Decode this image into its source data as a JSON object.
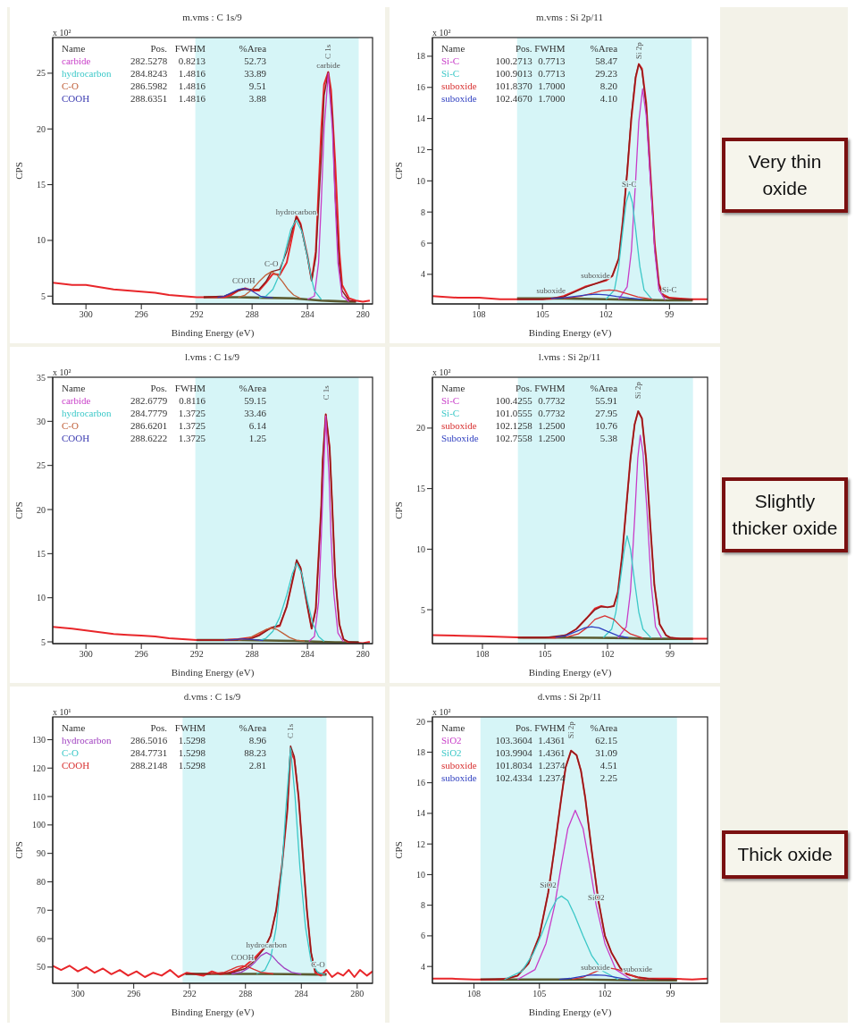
{
  "chart_data": [
    {
      "type": "line",
      "title": "m.vms : C 1s/9",
      "xlabel": "Binding Energy (eV)",
      "ylabel": "CPS",
      "xlim": [
        302.4,
        279.3
      ],
      "xticks": [
        300,
        296,
        292,
        288,
        284,
        280
      ],
      "ylim": [
        4.3,
        28.2
      ],
      "yticks": [
        5,
        10,
        15,
        20,
        25
      ],
      "bands": [
        {
          "axis": "x",
          "from": 292.1,
          "to": 280.3,
          "color": "#d6f5f7"
        }
      ],
      "legend": "top left",
      "legend_title": "Name",
      "annotations": [
        "x 10²",
        "Pos.  FWHM  %Area",
        "282.5278  0.8213  52.73",
        "284.8243  1.4816  33.89",
        "286.5982  1.4816  9.51",
        "288.6351  1.4816  3.88",
        {
          "text": "carbide",
          "x": 282.5,
          "y": 25.0
        },
        {
          "text": "hydrocarbon",
          "x": 284.82,
          "y": 11.8
        },
        {
          "text": "C-O",
          "x": 286.6,
          "y": 7.2
        },
        {
          "text": "COOH",
          "x": 288.6,
          "y": 5.7
        },
        {
          "text": "C 1s",
          "x": 282.5,
          "y": 25.1
        }
      ],
      "series": [
        {
          "name": "carbide",
          "color": "#c83cc8",
          "x": [
            284,
            283.5,
            283.2,
            283,
            282.8,
            282.5,
            282.2,
            282,
            281.8,
            281.5,
            281
          ],
          "values": [
            4.7,
            5.0,
            8.0,
            13.5,
            20.0,
            25.0,
            20.0,
            13.5,
            8.0,
            5.0,
            4.5
          ]
        },
        {
          "name": "hydrocarbon",
          "color": "#3cc8c8",
          "x": [
            287.5,
            287,
            286.5,
            286,
            285.5,
            285.2,
            284.82,
            284.4,
            284,
            283.7,
            283.5,
            283
          ],
          "values": [
            4.85,
            5.0,
            5.6,
            7.0,
            9.5,
            11.0,
            11.8,
            10.8,
            8.5,
            6.5,
            5.5,
            4.7
          ]
        },
        {
          "name": "C-O",
          "color": "#c0603a",
          "x": [
            289,
            288.5,
            288,
            287.5,
            287,
            286.6,
            286.2,
            285.8,
            285.4,
            285,
            284.5
          ],
          "values": [
            4.9,
            5.1,
            5.6,
            6.3,
            6.9,
            7.2,
            6.9,
            6.3,
            5.6,
            5.1,
            4.8
          ]
        },
        {
          "name": "COOH",
          "color": "#3a3ab0",
          "x": [
            290.5,
            290,
            289.5,
            289,
            288.6,
            288.2,
            287.8,
            287.4,
            287,
            286.5
          ],
          "values": [
            4.9,
            5.0,
            5.3,
            5.6,
            5.7,
            5.6,
            5.3,
            5.0,
            4.9,
            4.85
          ]
        },
        {
          "color": "#5a5a30",
          "x": [
            291.5,
            289,
            287,
            285,
            284,
            283,
            282,
            281,
            280.5
          ],
          "values": [
            4.9,
            4.9,
            4.85,
            4.8,
            4.7,
            4.6,
            4.55,
            4.5,
            4.5
          ]
        },
        {
          "color": "#e8262a",
          "x": [
            302.4,
            301,
            300,
            299,
            298,
            297,
            296,
            295,
            294,
            293,
            292,
            291,
            290,
            289.5,
            289,
            288.5,
            288,
            287.5,
            287,
            286.5,
            286,
            285.5,
            285,
            284.8,
            284.5,
            284,
            283.7,
            283.4,
            283,
            282.8,
            282.5,
            282.3,
            282,
            281.7,
            281.5,
            281,
            280.5,
            280,
            279.5
          ],
          "values": [
            6.2,
            6.0,
            6.0,
            5.8,
            5.6,
            5.5,
            5.4,
            5.3,
            5.1,
            5.0,
            4.9,
            4.9,
            4.9,
            5.1,
            5.5,
            5.7,
            5.5,
            5.5,
            6.2,
            7.0,
            6.9,
            8.0,
            11.0,
            12.2,
            11.5,
            8.6,
            6.4,
            9.0,
            20.0,
            24.0,
            25.1,
            23.5,
            17.0,
            9.0,
            6.0,
            4.8,
            4.6,
            4.5,
            4.6
          ]
        },
        {
          "color": "#8b1c1c",
          "x": [
            291.5,
            290,
            289,
            288.6,
            288,
            287.5,
            287,
            286.6,
            286,
            285.5,
            285,
            284.8,
            284.5,
            284,
            283.7,
            283.4,
            283,
            282.8,
            282.5,
            282.2,
            282,
            281.7,
            281.5,
            281,
            280.5
          ],
          "values": [
            4.9,
            5.0,
            5.5,
            5.6,
            5.6,
            5.6,
            6.3,
            7.2,
            7.4,
            9.0,
            11.4,
            12.1,
            11.4,
            8.5,
            6.4,
            8.5,
            17.5,
            23.0,
            25.1,
            21.0,
            14.0,
            7.8,
            5.5,
            4.6,
            4.5
          ]
        }
      ]
    },
    {
      "type": "line",
      "title": "m.vms : Si 2p/11",
      "xlabel": "Binding Energy (eV)",
      "ylabel": "CPS",
      "xlim": [
        110.2,
        97.2
      ],
      "xticks": [
        108,
        105,
        102,
        99
      ],
      "ylim": [
        2.1,
        19.2
      ],
      "yticks": [
        4,
        6,
        8,
        10,
        12,
        14,
        16,
        18
      ],
      "bands": [
        {
          "axis": "x",
          "from": 106.2,
          "to": 97.95,
          "color": "#d6f5f7"
        }
      ],
      "legend": "top left",
      "legend_title": "Name",
      "annotations": [
        "x 10²",
        "Pos.  FWHM  %Area",
        "100.2713  0.7713  58.47",
        "100.9013  0.7713  29.23",
        "101.8370  1.7000  8.20",
        "102.4670  1.7000  4.10",
        {
          "text": "suboxide",
          "x": 102.5,
          "y": 3.4
        },
        {
          "text": "suboxide",
          "x": 104.6,
          "y": 2.45
        },
        {
          "text": "Si-C",
          "x": 100.9,
          "y": 9.3
        },
        {
          "text": "Si-C",
          "x": 99.0,
          "y": 2.5
        },
        {
          "text": "Si 2p",
          "x": 100.45,
          "y": 17.5
        }
      ],
      "series": [
        {
          "name": "Si-C",
          "color": "#c83cc8",
          "x": [
            101.4,
            101.0,
            100.8,
            100.6,
            100.45,
            100.27,
            100.1,
            99.9,
            99.7,
            99.5,
            99.2
          ],
          "values": [
            2.4,
            3.2,
            5.5,
            10.0,
            13.8,
            15.9,
            14.2,
            10.0,
            5.5,
            3.0,
            2.35
          ]
        },
        {
          "name": "Si-C",
          "color": "#3cc8c8",
          "x": [
            102,
            101.6,
            101.4,
            101.2,
            101.05,
            100.9,
            100.75,
            100.6,
            100.4,
            100.2,
            99.8
          ],
          "values": [
            2.4,
            3.0,
            4.5,
            6.9,
            8.6,
            9.3,
            8.6,
            6.9,
            4.5,
            3.0,
            2.35
          ]
        },
        {
          "name": "suboxide",
          "color": "#d83030",
          "x": [
            104,
            103.2,
            102.6,
            102.2,
            101.84,
            101.5,
            101.1,
            100.5,
            99.8
          ],
          "values": [
            2.45,
            2.6,
            2.8,
            2.95,
            3.0,
            2.95,
            2.8,
            2.55,
            2.4
          ]
        },
        {
          "name": "suboxide",
          "color": "#2f3fc0",
          "x": [
            104.6,
            104,
            103.4,
            102.9,
            102.47,
            102.0,
            101.5,
            100.9,
            100.3
          ],
          "values": [
            2.45,
            2.5,
            2.6,
            2.68,
            2.72,
            2.68,
            2.58,
            2.48,
            2.4
          ]
        },
        {
          "color": "#5a5a30",
          "x": [
            106.2,
            104,
            102,
            101,
            100,
            99,
            97.9
          ],
          "values": [
            2.45,
            2.45,
            2.4,
            2.38,
            2.35,
            2.33,
            2.33
          ]
        },
        {
          "color": "#e8262a",
          "x": [
            110.2,
            109,
            108,
            107,
            106,
            105,
            104.5,
            104,
            103.5,
            103,
            102.5,
            102,
            101.7,
            101.4,
            101.2,
            101,
            100.8,
            100.6,
            100.45,
            100.3,
            100.1,
            99.9,
            99.7,
            99.5,
            99.3,
            99,
            98.5,
            98,
            97.2
          ],
          "values": [
            2.6,
            2.5,
            2.5,
            2.4,
            2.4,
            2.4,
            2.45,
            2.6,
            2.9,
            3.2,
            3.4,
            3.6,
            3.9,
            5.0,
            7.5,
            10.5,
            14.0,
            16.6,
            17.5,
            17.2,
            15.0,
            10.5,
            6.0,
            3.4,
            2.7,
            2.5,
            2.45,
            2.4,
            2.4
          ]
        },
        {
          "color": "#8b1c1c",
          "x": [
            106.2,
            105,
            104,
            103.5,
            103,
            102.5,
            102,
            101.7,
            101.4,
            101.2,
            101,
            100.8,
            100.6,
            100.45,
            100.3,
            100.1,
            99.9,
            99.7,
            99.5,
            99.3,
            99,
            98.5,
            97.9
          ],
          "values": [
            2.4,
            2.4,
            2.55,
            2.85,
            3.15,
            3.4,
            3.65,
            3.9,
            5.0,
            7.4,
            10.6,
            14.2,
            16.7,
            17.5,
            17.1,
            14.8,
            10.3,
            5.8,
            3.3,
            2.6,
            2.45,
            2.4,
            2.4
          ]
        }
      ]
    },
    {
      "type": "other",
      "title": "Very thin oxide"
    },
    {
      "type": "line",
      "title": "l.vms : C 1s/9",
      "xlabel": "Binding Energy (eV)",
      "ylabel": "CPS",
      "xlim": [
        302.4,
        279.3
      ],
      "xticks": [
        300,
        296,
        292,
        288,
        284,
        280
      ],
      "ylim": [
        4.8,
        35
      ],
      "yticks": [
        5,
        10,
        15,
        20,
        25,
        30,
        35
      ],
      "bands": [
        {
          "axis": "x",
          "from": 292.1,
          "to": 280.3,
          "color": "#d6f5f7"
        }
      ],
      "legend": "top left",
      "legend_title": "Name",
      "annotations": [
        "x 10²",
        "Pos.  FWHM  %Area",
        "282.6779  0.8116  59.15",
        "284.7779  1.3725  33.46",
        "286.6201  1.3725  6.14",
        "288.6222  1.3725  1.25",
        {
          "text": "C 1s",
          "x": 282.68,
          "y": 30.8
        }
      ],
      "series": [
        {
          "name": "carbide",
          "color": "#c83cc8",
          "x": [
            283.9,
            283.5,
            283.2,
            283.0,
            282.9,
            282.68,
            282.45,
            282.3,
            282.1,
            281.8,
            281.4
          ],
          "values": [
            5.05,
            5.6,
            9.5,
            17.0,
            21.5,
            30.6,
            24.0,
            17.0,
            10.5,
            6.0,
            5.0
          ]
        },
        {
          "name": "hydrocarbon",
          "color": "#3cc8c8",
          "x": [
            287.5,
            287,
            286.5,
            286,
            285.5,
            285.1,
            284.78,
            284.4,
            284,
            283.6,
            283.2,
            282.8
          ],
          "values": [
            5.15,
            5.4,
            6.2,
            7.8,
            10.3,
            12.7,
            13.9,
            12.7,
            9.6,
            7.0,
            5.6,
            5.05
          ]
        },
        {
          "name": "C-O",
          "color": "#c0603a",
          "x": [
            289,
            288.4,
            288,
            287.5,
            287,
            286.62,
            286.2,
            285.8,
            285.3,
            284.8,
            284.2
          ],
          "values": [
            5.2,
            5.35,
            5.6,
            6.0,
            6.4,
            6.55,
            6.4,
            6.0,
            5.5,
            5.2,
            5.1
          ]
        },
        {
          "name": "COOH",
          "color": "#3a3ab0",
          "x": [
            290,
            289.4,
            289,
            288.62,
            288.2,
            287.8,
            287.2
          ],
          "values": [
            5.2,
            5.25,
            5.3,
            5.35,
            5.3,
            5.25,
            5.15
          ]
        },
        {
          "color": "#5a5a30",
          "x": [
            292,
            289,
            287,
            285,
            284,
            283,
            282,
            281,
            280.3
          ],
          "values": [
            5.2,
            5.2,
            5.15,
            5.1,
            5.05,
            5.0,
            4.95,
            4.95,
            4.95
          ]
        },
        {
          "color": "#e8262a",
          "x": [
            302.4,
            301,
            300,
            299,
            298,
            297,
            296,
            295,
            294,
            293,
            292,
            291,
            290,
            289,
            288.5,
            288,
            287.5,
            287,
            286.6,
            286,
            285.5,
            285,
            284.78,
            284.5,
            284,
            283.7,
            283.4,
            283,
            282.9,
            282.68,
            282.4,
            282.2,
            282,
            281.7,
            281.4,
            281,
            280.5,
            280,
            279.5
          ],
          "values": [
            6.7,
            6.5,
            6.3,
            6.1,
            5.9,
            5.8,
            5.7,
            5.6,
            5.4,
            5.3,
            5.2,
            5.2,
            5.2,
            5.3,
            5.4,
            5.5,
            5.8,
            6.3,
            6.6,
            6.8,
            9.0,
            12.5,
            14.2,
            13.4,
            9.0,
            6.5,
            8.8,
            20.5,
            25.5,
            30.8,
            27.0,
            20.0,
            12.5,
            7.0,
            5.3,
            4.9,
            4.9,
            4.85,
            5.0
          ]
        },
        {
          "color": "#8b1c1c",
          "x": [
            292,
            290,
            289,
            288,
            287.5,
            287,
            286.6,
            286,
            285.5,
            285,
            284.78,
            284.5,
            284,
            283.7,
            283.4,
            283,
            282.9,
            282.68,
            282.4,
            282.2,
            282,
            281.7,
            281.4,
            281,
            280.3
          ],
          "values": [
            5.2,
            5.2,
            5.25,
            5.4,
            5.7,
            6.2,
            6.6,
            6.9,
            9.0,
            12.6,
            14.3,
            13.4,
            9.0,
            6.5,
            8.6,
            20.3,
            25.5,
            30.8,
            27.0,
            20.0,
            12.5,
            7.0,
            5.3,
            5.0,
            4.95
          ]
        }
      ]
    },
    {
      "type": "line",
      "title": "l.vms : Si 2p/11",
      "xlabel": "Binding Energy (eV)",
      "ylabel": "CPS",
      "xlim": [
        110.4,
        97.2
      ],
      "xticks": [
        108,
        105,
        102,
        99
      ],
      "ylim": [
        2.2,
        24.2
      ],
      "yticks": [
        5,
        10,
        15,
        20
      ],
      "bands": [
        {
          "axis": "x",
          "from": 106.3,
          "to": 97.9,
          "color": "#d6f5f7"
        }
      ],
      "legend": "top left",
      "legend_title": "Name",
      "annotations": [
        "x 10²",
        "Pos.  FWHM  %Area",
        "100.4255  0.7732  55.91",
        "101.0555  0.7732  27.95",
        "102.1258  1.2500  10.76",
        "102.7558  1.2500  5.38",
        {
          "text": "Si 2p",
          "x": 100.53,
          "y": 21.4
        }
      ],
      "series": [
        {
          "name": "Si-C",
          "color": "#c83cc8",
          "x": [
            101.5,
            101.1,
            100.9,
            100.7,
            100.55,
            100.43,
            100.3,
            100.1,
            99.9,
            99.7,
            99.4
          ],
          "values": [
            2.65,
            3.6,
            6.5,
            12.5,
            17.5,
            19.4,
            18.0,
            13.0,
            7.0,
            3.6,
            2.65
          ]
        },
        {
          "name": "Si-C",
          "color": "#3cc8c8",
          "x": [
            102.2,
            101.8,
            101.6,
            101.4,
            101.2,
            101.06,
            100.9,
            100.7,
            100.5,
            100.3,
            99.9
          ],
          "values": [
            2.7,
            3.4,
            4.8,
            7.3,
            9.9,
            11.1,
            10.0,
            7.3,
            4.8,
            3.4,
            2.65
          ]
        },
        {
          "name": "suboxide",
          "color": "#d83030",
          "x": [
            104,
            103.4,
            103,
            102.6,
            102.13,
            101.7,
            101.3,
            100.9,
            100.3
          ],
          "values": [
            2.72,
            3.0,
            3.5,
            4.2,
            4.5,
            4.2,
            3.5,
            3.0,
            2.65
          ]
        },
        {
          "name": "Suboxide",
          "color": "#2f3fc0",
          "x": [
            104.5,
            104,
            103.5,
            103.1,
            102.76,
            102.4,
            102,
            101.5,
            101
          ],
          "values": [
            2.72,
            2.85,
            3.2,
            3.5,
            3.6,
            3.5,
            3.2,
            2.85,
            2.68
          ]
        },
        {
          "color": "#5a5a30",
          "x": [
            106.3,
            104,
            102.5,
            101,
            100,
            99,
            97.9
          ],
          "values": [
            2.7,
            2.7,
            2.68,
            2.65,
            2.6,
            2.6,
            2.6
          ]
        },
        {
          "color": "#e8262a",
          "x": [
            110.4,
            109,
            108,
            107,
            106,
            105,
            104.5,
            104,
            103.5,
            103,
            102.6,
            102.3,
            102,
            101.7,
            101.5,
            101.3,
            101.1,
            100.9,
            100.7,
            100.53,
            100.35,
            100.15,
            99.95,
            99.75,
            99.5,
            99.2,
            99,
            98.5,
            98,
            97.2
          ],
          "values": [
            2.9,
            2.85,
            2.8,
            2.75,
            2.7,
            2.7,
            2.7,
            2.9,
            3.4,
            4.3,
            5.1,
            5.3,
            5.2,
            5.3,
            6.5,
            9.5,
            13.5,
            17.5,
            20.3,
            21.4,
            20.8,
            17.5,
            12.0,
            7.0,
            3.8,
            2.9,
            2.7,
            2.6,
            2.6,
            2.6
          ]
        },
        {
          "color": "#8b1c1c",
          "x": [
            106.3,
            105,
            104,
            103.5,
            103,
            102.6,
            102.3,
            102,
            101.7,
            101.5,
            101.3,
            101.1,
            100.9,
            100.7,
            100.53,
            100.35,
            100.15,
            99.95,
            99.75,
            99.5,
            99.2,
            99,
            98.5,
            97.9
          ],
          "values": [
            2.7,
            2.7,
            2.9,
            3.4,
            4.3,
            5.0,
            5.25,
            5.2,
            5.3,
            6.4,
            9.4,
            13.4,
            17.4,
            20.3,
            21.4,
            20.8,
            17.4,
            12.0,
            7.0,
            3.8,
            2.9,
            2.7,
            2.6,
            2.6
          ]
        }
      ]
    },
    {
      "type": "other",
      "title": "Slightly thicker oxide"
    },
    {
      "type": "line",
      "title": "d.vms : C 1s/9",
      "xlabel": "Binding Energy (eV)",
      "ylabel": "CPS",
      "xlim": [
        301.8,
        278.9
      ],
      "xticks": [
        300,
        296,
        292,
        288,
        284,
        280
      ],
      "ylim": [
        44.3,
        138
      ],
      "yticks": [
        50,
        60,
        70,
        80,
        90,
        100,
        110,
        120,
        130
      ],
      "bands": [
        {
          "axis": "x",
          "from": 292.5,
          "to": 282.2,
          "color": "#d6f5f7"
        }
      ],
      "legend": "top left",
      "legend_title": "Name",
      "annotations": [
        "x 10¹",
        "Pos.  FWHM  %Area",
        "286.5016  1.5298  8.96",
        "284.7731  1.5298  88.23",
        "288.2148  1.5298  2.81",
        {
          "text": "hydrocarbon",
          "x": 286.5,
          "y": 55.1
        },
        {
          "text": "COOH",
          "x": 288.21,
          "y": 50.5
        },
        {
          "text": "C-O",
          "x": 282.8,
          "y": 48
        },
        {
          "text": "C 1s",
          "x": 284.77,
          "y": 127.8
        }
      ],
      "series": [
        {
          "name": "hydrocarbon",
          "color": "#a040c0",
          "x": [
            289,
            288.3,
            287.8,
            287.3,
            286.9,
            286.5,
            286.1,
            285.7,
            285.2,
            284.7,
            284
          ],
          "values": [
            47.6,
            48.2,
            49.6,
            51.8,
            54.0,
            55.1,
            54.0,
            51.8,
            49.6,
            48.2,
            47.5
          ]
        },
        {
          "name": "C-O",
          "color": "#3cc8c8",
          "x": [
            287.2,
            286.6,
            286.2,
            285.8,
            285.4,
            285.1,
            284.77,
            284.45,
            284.1,
            283.7,
            283.3,
            282.8,
            282.3
          ],
          "values": [
            47.6,
            49,
            53,
            64,
            84,
            106,
            127,
            110,
            85,
            64,
            52,
            48,
            47.4
          ]
        },
        {
          "name": "COOH",
          "color": "#d83030",
          "x": [
            290.5,
            289.5,
            289,
            288.6,
            288.21,
            287.8,
            287.4,
            286.9,
            286
          ],
          "values": [
            47.6,
            48.2,
            49.2,
            50.1,
            50.5,
            50.1,
            49.2,
            48.2,
            47.6
          ]
        },
        {
          "color": "#5a5a30",
          "x": [
            292.3,
            289,
            287,
            285,
            283,
            282.2
          ],
          "values": [
            47.6,
            47.6,
            47.6,
            47.5,
            47.4,
            47.4
          ]
        },
        {
          "color": "#e8262a",
          "x": [
            301.8,
            301.2,
            300.6,
            300,
            299.4,
            298.8,
            298.2,
            297.6,
            297,
            296.4,
            295.8,
            295.2,
            294.6,
            294,
            293.4,
            292.8,
            292.2,
            291.6,
            291,
            290.4,
            289.8,
            289.2,
            288.6,
            288,
            287.4,
            287,
            286.6,
            286.2,
            285.8,
            285.4,
            285,
            284.77,
            284.5,
            284.2,
            283.9,
            283.6,
            283.3,
            283,
            282.6,
            282.2,
            281.8,
            281.4,
            281,
            280.6,
            280.2,
            279.8,
            279.3,
            278.9
          ],
          "values": [
            50.5,
            49,
            50.5,
            48.5,
            50,
            48,
            49.5,
            47.5,
            49,
            47,
            48.5,
            46.5,
            48,
            47,
            49,
            46.5,
            48,
            47.5,
            47,
            48.5,
            47.5,
            48,
            49,
            50.5,
            53,
            55,
            57,
            61,
            70,
            85,
            105,
            126,
            123,
            110,
            90,
            70,
            55,
            48,
            47,
            49,
            46.5,
            48,
            47,
            49,
            46.5,
            49,
            47,
            48.5
          ]
        },
        {
          "color": "#8b1c1c",
          "x": [
            292.3,
            291,
            290,
            289,
            288,
            287.4,
            287,
            286.6,
            286.2,
            285.8,
            285.4,
            285,
            284.77,
            284.5,
            284.2,
            283.9,
            283.6,
            283.3,
            283,
            282.6,
            282.2
          ],
          "values": [
            47.6,
            47.6,
            47.7,
            48.0,
            49.5,
            52,
            54.5,
            57,
            61,
            70,
            85,
            106,
            127.8,
            124,
            110,
            90,
            70,
            55,
            48.5,
            47.7,
            47.6
          ]
        }
      ]
    },
    {
      "type": "line",
      "title": "d.vms : Si 2p/11",
      "xlabel": "Binding Energy (eV)",
      "ylabel": "CPS",
      "xlim": [
        109.9,
        97.3
      ],
      "xticks": [
        108,
        105,
        102,
        99
      ],
      "ylim": [
        2.9,
        20.3
      ],
      "yticks": [
        4,
        6,
        8,
        10,
        12,
        14,
        16,
        18,
        20
      ],
      "bands": [
        {
          "axis": "x",
          "from": 107.7,
          "to": 98.7,
          "color": "#d6f5f7"
        }
      ],
      "legend": "top left",
      "legend_title": "Name",
      "annotations": [
        "x 10²",
        "Pos.  FWHM  %Area",
        "103.3604  1.4361  62.15",
        "103.9904  1.4361  31.09",
        "101.8034  1.2374  4.51",
        "102.4334  1.2374  2.25",
        {
          "text": "SiO2",
          "x": 102.4,
          "y": 8.0
        },
        {
          "text": "SiO2",
          "x": 104.6,
          "y": 8.8
        },
        {
          "text": "suboxide",
          "x": 100.5,
          "y": 3.3
        },
        {
          "text": "suboxide",
          "x": 102.43,
          "y": 3.45
        },
        {
          "text": "Si 2p",
          "x": 103.55,
          "y": 18.1
        }
      ],
      "series": [
        {
          "name": "SiO2",
          "color": "#c83cc8",
          "x": [
            106,
            105.2,
            104.7,
            104.3,
            104,
            103.7,
            103.36,
            103.0,
            102.7,
            102.4,
            102.0,
            101.5,
            100.8
          ],
          "values": [
            3.15,
            3.8,
            5.5,
            8.0,
            10.6,
            13.0,
            14.2,
            13.0,
            10.6,
            8.0,
            5.5,
            3.8,
            3.15
          ]
        },
        {
          "name": "SiO2",
          "color": "#3cc8c8",
          "x": [
            106.6,
            105.8,
            105.3,
            104.9,
            104.5,
            104.2,
            103.99,
            103.7,
            103.4,
            103.0,
            102.6,
            102.1,
            101.4
          ],
          "values": [
            3.15,
            3.7,
            4.8,
            6.1,
            7.6,
            8.4,
            8.6,
            8.3,
            7.4,
            6.0,
            4.7,
            3.7,
            3.15
          ]
        },
        {
          "name": "suboxide",
          "color": "#d83030",
          "x": [
            103.5,
            103,
            102.6,
            102.2,
            101.8,
            101.4,
            101,
            100.6,
            100.1
          ],
          "values": [
            3.15,
            3.3,
            3.55,
            3.8,
            3.9,
            3.8,
            3.55,
            3.3,
            3.12
          ]
        },
        {
          "name": "suboxide",
          "color": "#2f3fc0",
          "x": [
            104.1,
            103.6,
            103.2,
            102.8,
            102.43,
            102.0,
            101.6,
            101.2,
            100.8
          ],
          "values": [
            3.15,
            3.22,
            3.32,
            3.42,
            3.45,
            3.42,
            3.32,
            3.22,
            3.12
          ]
        },
        {
          "color": "#5a5a30",
          "x": [
            107.7,
            105,
            103,
            101,
            98.7
          ],
          "values": [
            3.15,
            3.15,
            3.15,
            3.1,
            3.1
          ]
        },
        {
          "color": "#e8262a",
          "x": [
            109.9,
            109,
            108,
            107,
            106.5,
            106,
            105.5,
            105,
            104.6,
            104.3,
            104,
            103.8,
            103.55,
            103.3,
            103.1,
            102.9,
            102.6,
            102.3,
            102,
            101.7,
            101.3,
            101,
            100.5,
            100,
            99,
            98,
            97.3
          ],
          "values": [
            3.2,
            3.2,
            3.15,
            3.15,
            3.2,
            3.4,
            4.2,
            6.0,
            8.8,
            11.8,
            15.0,
            17.0,
            18.1,
            17.8,
            16.8,
            15.0,
            11.5,
            8.3,
            6.0,
            4.9,
            3.9,
            3.5,
            3.3,
            3.2,
            3.2,
            3.15,
            3.2
          ]
        },
        {
          "color": "#8b1c1c",
          "x": [
            107.7,
            106.5,
            106,
            105.5,
            105,
            104.6,
            104.3,
            104,
            103.8,
            103.55,
            103.3,
            103.1,
            102.9,
            102.6,
            102.3,
            102,
            101.7,
            101.3,
            101,
            100.5,
            100,
            99.5,
            98.7
          ],
          "values": [
            3.15,
            3.2,
            3.4,
            4.2,
            6.0,
            8.8,
            11.8,
            15.0,
            17.0,
            18.1,
            17.8,
            16.8,
            15.0,
            11.5,
            8.3,
            6.0,
            4.9,
            3.9,
            3.5,
            3.3,
            3.2,
            3.15,
            3.15
          ]
        }
      ]
    },
    {
      "type": "other",
      "title": "Thick oxide"
    }
  ]
}
